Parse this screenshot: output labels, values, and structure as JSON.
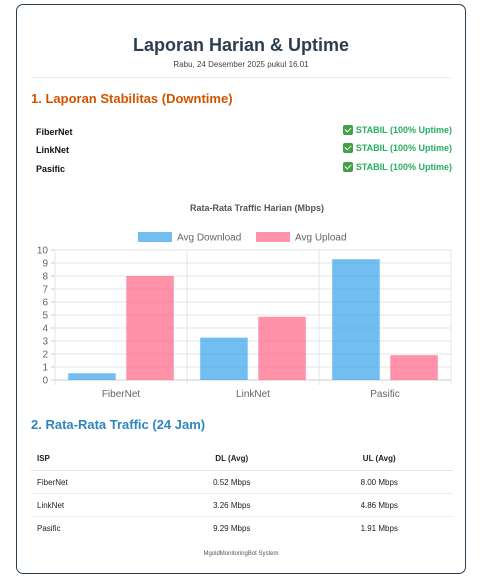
{
  "report": {
    "title": "Laporan Harian & Uptime",
    "subtitle": "Rabu, 24 Desember 2025 pukul 16.01"
  },
  "stability": {
    "heading": "1. Laporan Stabilitas (Downtime)",
    "status_color": "#27ae60",
    "items": [
      {
        "isp": "FiberNet",
        "status": "STABIL (100% Uptime)"
      },
      {
        "isp": "LinkNet",
        "status": "STABIL (100% Uptime)"
      },
      {
        "isp": "Pasific",
        "status": "STABIL (100% Uptime)"
      }
    ]
  },
  "chart_data": {
    "type": "bar",
    "title": "Rata-Rata Traffic Harian (Mbps)",
    "categories": [
      "FiberNet",
      "LinkNet",
      "Pasific"
    ],
    "series": [
      {
        "name": "Avg Download",
        "values": [
          0.52,
          3.26,
          9.29
        ],
        "color": "#36a2eb"
      },
      {
        "name": "Avg Upload",
        "values": [
          8.0,
          4.86,
          1.91
        ],
        "color": "#ff6384"
      }
    ],
    "ylim": [
      0,
      10
    ],
    "yticks": [
      "0",
      "1",
      "2",
      "3",
      "4",
      "5",
      "6",
      "7",
      "8",
      "9",
      "10"
    ],
    "legend": "top",
    "grid": true
  },
  "traffic": {
    "heading": "2. Rata-Rata Traffic (24 Jam)",
    "columns": [
      "ISP",
      "DL (Avg)",
      "UL (Avg)"
    ],
    "rows": [
      [
        "FiberNet",
        "0.52 Mbps",
        "8.00 Mbps"
      ],
      [
        "LinkNet",
        "3.26 Mbps",
        "4.86 Mbps"
      ],
      [
        "Pasific",
        "9.29 Mbps",
        "1.91 Mbps"
      ]
    ]
  },
  "footer": "MgoldMonitoringBot System"
}
